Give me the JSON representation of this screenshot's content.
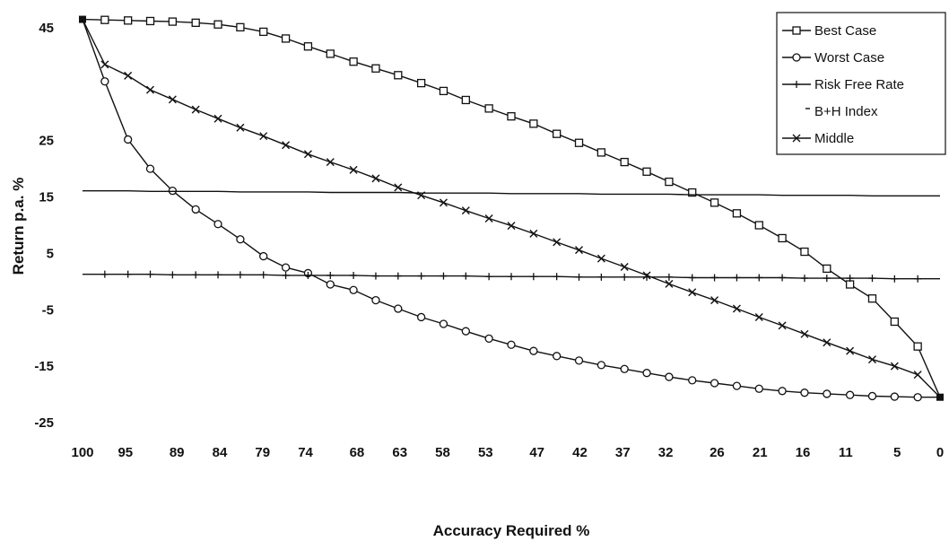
{
  "chart_data": {
    "type": "line",
    "xlabel": "Accuracy Required %",
    "ylabel": "Return p.a. %",
    "x_tick_labels": [
      "100",
      "95",
      "89",
      "84",
      "79",
      "74",
      "68",
      "63",
      "58",
      "53",
      "47",
      "42",
      "37",
      "32",
      "26",
      "21",
      "16",
      "11",
      "5",
      "0"
    ],
    "y_tick_labels": [
      "45",
      "25",
      "15",
      "5",
      "-5",
      "-15",
      "-25"
    ],
    "ylim": [
      -25,
      50
    ],
    "x_reversed": true,
    "grid": false,
    "legend_position": "top-right",
    "x": [
      100,
      97.4,
      94.7,
      92.1,
      89.5,
      86.8,
      84.2,
      81.6,
      78.9,
      76.3,
      73.7,
      71.1,
      68.4,
      65.8,
      63.2,
      60.5,
      57.9,
      55.3,
      52.6,
      50,
      47.4,
      44.7,
      42.1,
      39.5,
      36.8,
      34.2,
      31.6,
      28.9,
      26.3,
      23.7,
      21.1,
      18.4,
      15.8,
      13.2,
      10.5,
      7.9,
      5.3,
      2.6,
      0
    ],
    "series": [
      {
        "name": "Best Case",
        "marker": "square",
        "values": [
          46.5,
          46.4,
          46.3,
          46.2,
          46.1,
          45.9,
          45.6,
          45.1,
          44.3,
          43.1,
          41.7,
          40.4,
          39.0,
          37.8,
          36.6,
          35.2,
          33.8,
          32.2,
          30.7,
          29.3,
          28.0,
          26.2,
          24.6,
          22.9,
          21.2,
          19.5,
          17.7,
          15.8,
          14.0,
          12.1,
          10.0,
          7.7,
          5.3,
          2.3,
          -0.5,
          -3.0,
          -7.1,
          -11.5,
          -20.5
        ]
      },
      {
        "name": "Worst Case",
        "marker": "circle",
        "values": [
          46.5,
          35.5,
          25.2,
          20.0,
          16.1,
          12.8,
          10.2,
          7.5,
          4.5,
          2.5,
          1.5,
          -0.5,
          -1.5,
          -3.3,
          -4.8,
          -6.3,
          -7.5,
          -8.8,
          -10.1,
          -11.2,
          -12.3,
          -13.2,
          -14.0,
          -14.8,
          -15.5,
          -16.2,
          -16.9,
          -17.5,
          -18.0,
          -18.5,
          -19.0,
          -19.4,
          -19.7,
          -19.9,
          -20.1,
          -20.3,
          -20.4,
          -20.5,
          -20.5
        ]
      },
      {
        "name": "Risk Free Rate",
        "marker": "plus",
        "values": [
          1.3,
          1.3,
          1.3,
          1.3,
          1.2,
          1.2,
          1.2,
          1.2,
          1.2,
          1.1,
          1.1,
          1.1,
          1.1,
          1.0,
          1.0,
          1.0,
          1.0,
          1.0,
          0.9,
          0.9,
          0.9,
          0.9,
          0.8,
          0.8,
          0.8,
          0.8,
          0.8,
          0.7,
          0.7,
          0.7,
          0.7,
          0.7,
          0.6,
          0.6,
          0.6,
          0.6,
          0.5,
          0.5,
          0.5
        ]
      },
      {
        "name": "B+H Index",
        "marker": "none",
        "values": [
          16.1,
          16.1,
          16.1,
          16.0,
          16.0,
          16.0,
          16.0,
          15.9,
          15.9,
          15.9,
          15.9,
          15.8,
          15.8,
          15.8,
          15.8,
          15.7,
          15.7,
          15.7,
          15.7,
          15.6,
          15.6,
          15.6,
          15.6,
          15.5,
          15.5,
          15.5,
          15.5,
          15.4,
          15.4,
          15.4,
          15.4,
          15.3,
          15.3,
          15.3,
          15.3,
          15.2,
          15.2,
          15.2,
          15.2
        ]
      },
      {
        "name": "Middle",
        "marker": "x",
        "values": [
          46.5,
          38.5,
          36.5,
          34.0,
          32.3,
          30.5,
          28.9,
          27.3,
          25.8,
          24.2,
          22.6,
          21.2,
          19.8,
          18.3,
          16.7,
          15.3,
          14.0,
          12.6,
          11.2,
          9.9,
          8.5,
          7.0,
          5.6,
          4.1,
          2.6,
          1.1,
          -0.4,
          -1.9,
          -3.3,
          -4.8,
          -6.3,
          -7.8,
          -9.3,
          -10.8,
          -12.3,
          -13.8,
          -15.0,
          -16.5,
          -20.5
        ]
      }
    ]
  }
}
